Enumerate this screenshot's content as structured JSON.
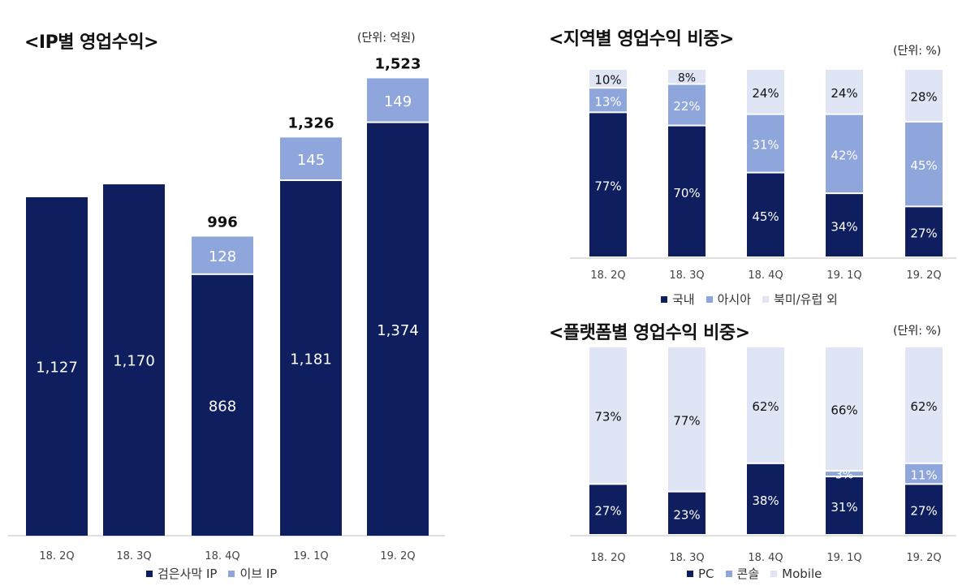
{
  "colors": {
    "dark": "#0f1e5e",
    "mid": "#8ea6dc",
    "light": "#dfe5f4",
    "axis": "#bfbfbf"
  },
  "left": {
    "title": "<IP별 영업수익>",
    "unit": "(단위: 억원)",
    "legend": [
      {
        "label": "검은사막 IP",
        "color": "#0f1e5e"
      },
      {
        "label": "이브 IP",
        "color": "#8ea6dc"
      }
    ]
  },
  "region": {
    "title": "<지역별 영업수익 비중>",
    "unit": "(단위: %)",
    "legend": [
      {
        "label": "국내",
        "color": "#0f1e5e"
      },
      {
        "label": "아시아",
        "color": "#8ea6dc"
      },
      {
        "label": "북미/유럽 외",
        "color": "#dfe5f4"
      }
    ]
  },
  "platform": {
    "title": "<플랫폼별 영업수익 비중>",
    "unit": "(단위: %)",
    "legend": [
      {
        "label": "PC",
        "color": "#0f1e5e"
      },
      {
        "label": "콘솔",
        "color": "#8ea6dc"
      },
      {
        "label": "Mobile",
        "color": "#dfe5f4"
      }
    ]
  },
  "chart_data": [
    {
      "type": "bar",
      "stacked": true,
      "title": "<IP별 영업수익>",
      "unit": "(단위: 억원)",
      "categories": [
        "18. 2Q",
        "18. 3Q",
        "18. 4Q",
        "19. 1Q",
        "19. 2Q"
      ],
      "series": [
        {
          "name": "검은사막 IP",
          "values": [
            1127,
            1170,
            868,
            1181,
            1374
          ],
          "labels": [
            "1,127",
            "1,170",
            "868",
            "1,181",
            "1,374"
          ]
        },
        {
          "name": "이브 IP",
          "values": [
            0,
            0,
            128,
            145,
            149
          ],
          "labels": [
            "",
            "",
            "128",
            "145",
            "149"
          ]
        }
      ],
      "totals": [
        "",
        "",
        "996",
        "1,326",
        "1,523"
      ],
      "ylim": [
        0,
        1600
      ]
    },
    {
      "type": "bar",
      "stacked": true,
      "title": "<지역별 영업수익 비중>",
      "unit": "(단위: %)",
      "categories": [
        "18. 2Q",
        "18. 3Q",
        "18. 4Q",
        "19. 1Q",
        "19. 2Q"
      ],
      "series": [
        {
          "name": "국내",
          "values": [
            77,
            70,
            45,
            34,
            27
          ]
        },
        {
          "name": "아시아",
          "values": [
            13,
            22,
            31,
            42,
            45
          ]
        },
        {
          "name": "북미/유럽 외",
          "values": [
            10,
            8,
            24,
            24,
            28
          ]
        }
      ],
      "ylim": [
        0,
        100
      ]
    },
    {
      "type": "bar",
      "stacked": true,
      "title": "<플랫폼별 영업수익 비중>",
      "unit": "(단위: %)",
      "categories": [
        "18. 2Q",
        "18. 3Q",
        "18. 4Q",
        "19. 1Q",
        "19. 2Q"
      ],
      "series": [
        {
          "name": "PC",
          "values": [
            27,
            23,
            38,
            31,
            27
          ]
        },
        {
          "name": "콘솔",
          "values": [
            0,
            0,
            0,
            3,
            11
          ]
        },
        {
          "name": "Mobile",
          "values": [
            73,
            77,
            62,
            66,
            62
          ]
        }
      ],
      "ylim": [
        0,
        100
      ]
    }
  ]
}
